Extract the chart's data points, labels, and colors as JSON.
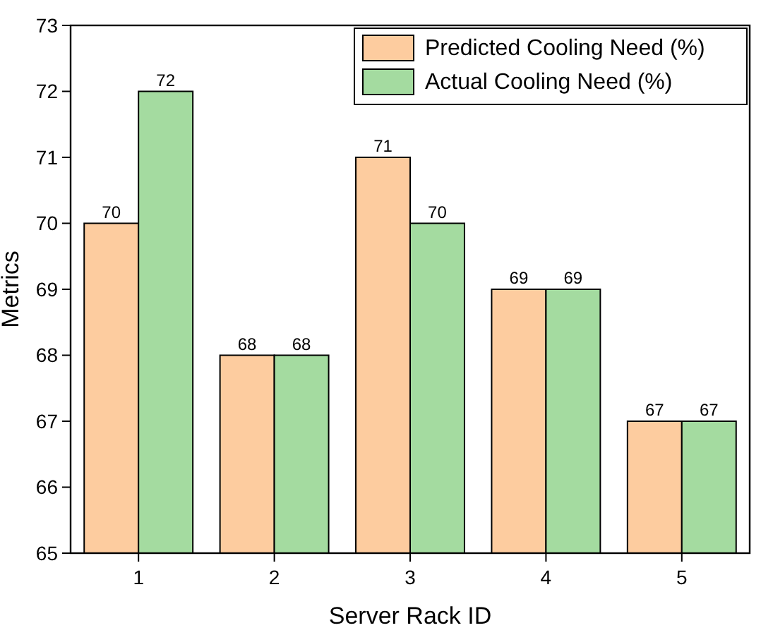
{
  "chart_data": {
    "type": "bar",
    "xlabel": "Server Rack ID",
    "ylabel": "Metrics",
    "categories": [
      "1",
      "2",
      "3",
      "4",
      "5"
    ],
    "series": [
      {
        "name": "Predicted Cooling Need (%)",
        "color": "#fdcc9f",
        "values": [
          70,
          68,
          71,
          69,
          67
        ]
      },
      {
        "name": "Actual Cooling Need (%)",
        "color": "#a4dba0",
        "values": [
          72,
          68,
          70,
          69,
          67
        ]
      }
    ],
    "ylim": [
      65,
      73
    ],
    "yticks": [
      65,
      66,
      67,
      68,
      69,
      70,
      71,
      72,
      73
    ],
    "data_labels": true,
    "legend": "top right",
    "grid": false
  }
}
